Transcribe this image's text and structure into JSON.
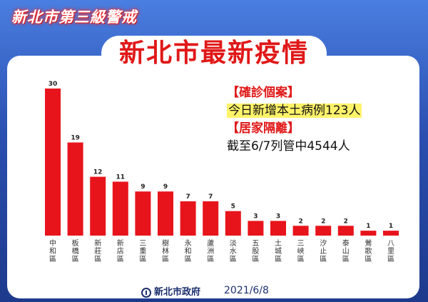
{
  "header": {
    "banner": "新北市第三級警戒",
    "title": "新北市最新疫情"
  },
  "info": {
    "section1": "【確診個案】",
    "line1": "今日新增本土病例123人",
    "section2": "【居家隔離】",
    "line2": "截至6/7列管中4544人"
  },
  "footer": {
    "logo": "新北市政府",
    "date": "2021/6/8"
  },
  "colors": {
    "bar": "#e8141b",
    "title_red": "#e01818",
    "background_blue": "#2d56b8",
    "highlight": "#fff36a"
  },
  "chart_data": {
    "type": "bar",
    "title": "",
    "xlabel": "",
    "ylabel": "",
    "categories": [
      "中和區",
      "板橋區",
      "新莊區",
      "新店區",
      "三重區",
      "樹林區",
      "永和區",
      "蘆洲區",
      "淡水區",
      "五股區",
      "土城區",
      "三峽區",
      "汐止區",
      "泰山區",
      "鶯歌區",
      "八里區"
    ],
    "values": [
      30,
      19,
      12,
      11,
      9,
      9,
      7,
      7,
      5,
      3,
      3,
      2,
      2,
      2,
      1,
      1
    ],
    "ylim": [
      0,
      30
    ],
    "grid": false,
    "legend": "none",
    "data_labels": true
  }
}
